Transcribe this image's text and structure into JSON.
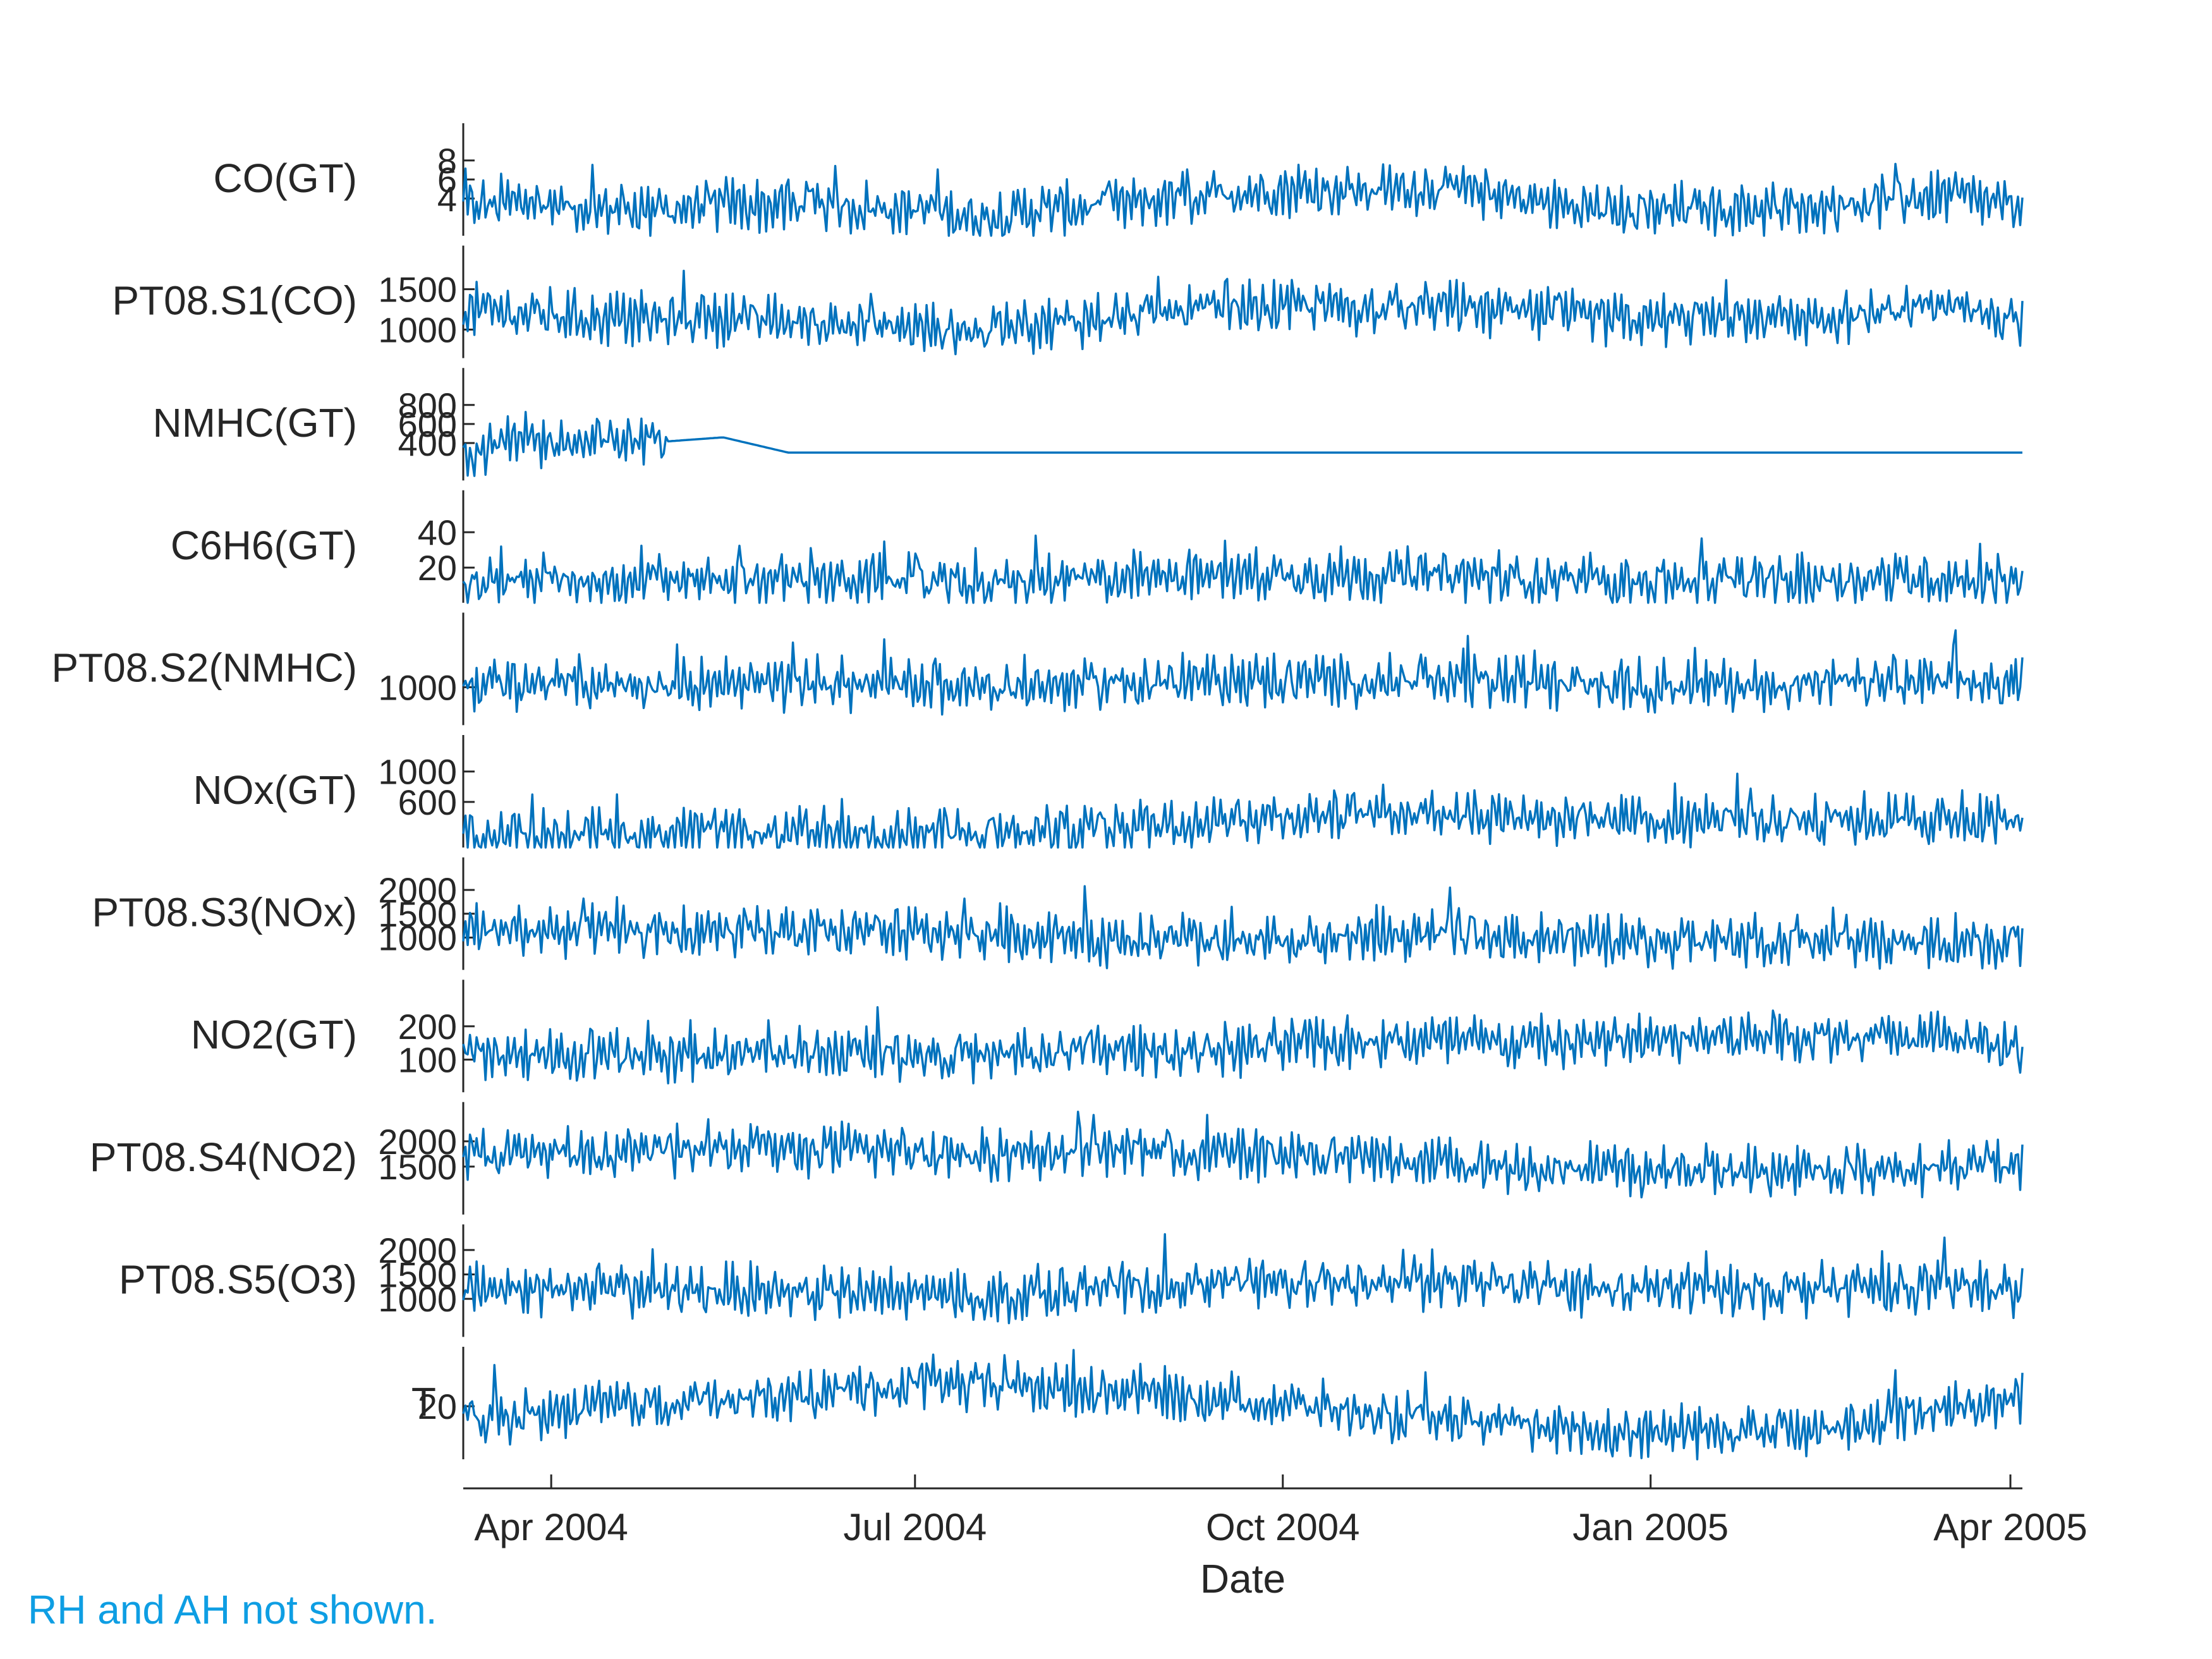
{
  "chart_data": {
    "type": "line",
    "title": "",
    "xlabel": "Date",
    "x_range": [
      "2004-03-10",
      "2005-04-04"
    ],
    "x_ticks": [
      {
        "date": "2004-04-01",
        "label": "Apr 2004"
      },
      {
        "date": "2004-07-01",
        "label": "Jul 2004"
      },
      {
        "date": "2004-10-01",
        "label": "Oct 2004"
      },
      {
        "date": "2005-01-01",
        "label": "Jan 2005"
      },
      {
        "date": "2005-04-01",
        "label": "Apr 2005"
      }
    ],
    "line_color": "#0072bd",
    "series": [
      {
        "name": "CO(GT)",
        "ylim": [
          0.1,
          11.9
        ],
        "yticks": [
          4,
          6,
          8
        ],
        "samples": [
          2.6,
          3.1,
          2.4,
          2.2,
          2.8,
          2.6,
          2.5,
          2.2,
          1.4,
          2.3,
          2.6,
          3.4,
          4.1,
          4.4,
          4.2,
          4.6,
          3.6,
          2.6,
          1.9,
          2.4,
          2.3,
          2.6,
          3.3,
          3.7,
          2.1
        ]
      },
      {
        "name": "PT08.S1(CO)",
        "ylim": [
          647,
          2040
        ],
        "yticks": [
          1000,
          1500
        ],
        "samples": [
          1180,
          1120,
          1080,
          1050,
          1070,
          1020,
          990,
          950,
          890,
          1010,
          1090,
          1150,
          1200,
          1220,
          1190,
          1210,
          1150,
          1080,
          1030,
          1070,
          1060,
          1080,
          1120,
          1150,
          1020
        ]
      },
      {
        "name": "NMHC(GT)",
        "ylim": [
          7,
          1189
        ],
        "yticks": [
          400,
          600,
          800
        ],
        "samples": [
          250,
          360,
          330,
          410,
          460,
          300,
          300,
          300,
          300,
          300,
          300,
          300,
          300,
          300,
          300,
          300,
          300,
          300,
          300,
          300,
          300,
          300,
          300,
          300,
          300
        ]
      },
      {
        "name": "C6H6(GT)",
        "ylim": [
          0.1,
          63.7
        ],
        "yticks": [
          20,
          40
        ],
        "samples": [
          10,
          11,
          10,
          10,
          11,
          10,
          10,
          9,
          6,
          9,
          11,
          12,
          13,
          13,
          12,
          13,
          11,
          10,
          9,
          10,
          9,
          10,
          11,
          11,
          9
        ]
      },
      {
        "name": "PT08.S2(NMHC)",
        "ylim": [
          383,
          2214
        ],
        "yticks": [
          1000
        ],
        "samples": [
          950,
          980,
          960,
          970,
          990,
          960,
          950,
          930,
          880,
          940,
          980,
          1000,
          1020,
          1030,
          1010,
          1030,
          990,
          960,
          930,
          950,
          950,
          960,
          980,
          990,
          930
        ]
      },
      {
        "name": "NOx(GT)",
        "ylim": [
          2,
          1479
        ],
        "yticks": [
          600,
          1000
        ],
        "samples": [
          110,
          100,
          90,
          100,
          110,
          100,
          100,
          95,
          80,
          120,
          210,
          260,
          330,
          360,
          380,
          400,
          350,
          320,
          280,
          300,
          290,
          290,
          300,
          290,
          250
        ]
      },
      {
        "name": "PT08.S3(NOx)",
        "ylim": [
          322,
          2683
        ],
        "yticks": [
          1000,
          1500,
          2000
        ],
        "samples": [
          1050,
          1020,
          1000,
          990,
          980,
          960,
          950,
          960,
          980,
          900,
          850,
          820,
          780,
          820,
          900,
          960,
          890,
          860,
          800,
          820,
          800,
          790,
          780,
          790,
          800
        ]
      },
      {
        "name": "NO2(GT)",
        "ylim": [
          2,
          340
        ],
        "yticks": [
          100,
          200
        ],
        "samples": [
          95,
          90,
          85,
          95,
          100,
          100,
          105,
          105,
          90,
          100,
          110,
          110,
          115,
          130,
          135,
          140,
          130,
          135,
          145,
          150,
          150,
          155,
          150,
          145,
          120
        ]
      },
      {
        "name": "PT08.S4(NO2)",
        "ylim": [
          551,
          2775
        ],
        "yticks": [
          1500,
          2000
        ],
        "samples": [
          1600,
          1620,
          1640,
          1700,
          1750,
          1700,
          1720,
          1700,
          1620,
          1690,
          1700,
          1680,
          1650,
          1600,
          1550,
          1500,
          1400,
          1350,
          1300,
          1330,
          1280,
          1300,
          1350,
          1400,
          1400
        ]
      },
      {
        "name": "PT08.S5(O3)",
        "ylim": [
          221,
          2523
        ],
        "yticks": [
          1000,
          1500,
          2000
        ],
        "samples": [
          1100,
          1080,
          1060,
          1050,
          1070,
          1020,
          990,
          960,
          900,
          1020,
          1100,
          1150,
          1200,
          1230,
          1200,
          1220,
          1150,
          1090,
          1050,
          1080,
          1070,
          1090,
          1130,
          1150,
          1020
        ]
      },
      {
        "name": "T",
        "ylim": [
          -1.9,
          44.6
        ],
        "yticks": [
          20
        ],
        "samples": [
          13,
          14,
          17,
          19,
          20,
          22,
          25,
          27,
          26,
          25,
          24,
          22,
          20,
          18,
          14,
          11,
          10,
          8,
          7,
          7,
          8,
          9,
          13,
          17,
          20
        ]
      }
    ]
  },
  "note": "RH and AH not shown."
}
